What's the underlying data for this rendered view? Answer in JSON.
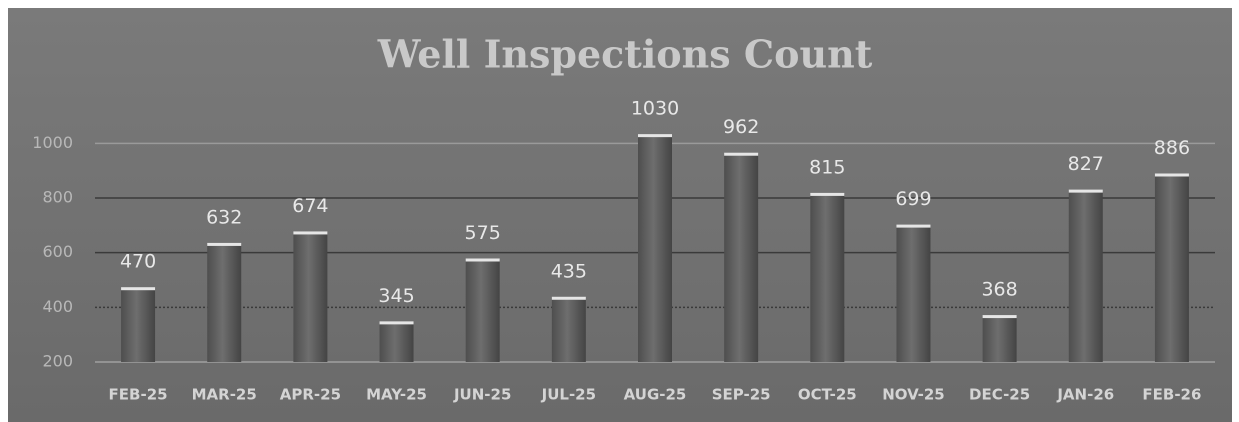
{
  "chart_data": {
    "type": "bar",
    "title": "Well Inspections Count",
    "categories": [
      "FEB-25",
      "MAR-25",
      "APR-25",
      "MAY-25",
      "JUN-25",
      "JUL-25",
      "AUG-25",
      "SEP-25",
      "OCT-25",
      "NOV-25",
      "DEC-25",
      "JAN-26",
      "FEB-26"
    ],
    "values": [
      470,
      632,
      674,
      345,
      575,
      435,
      1030,
      962,
      815,
      699,
      368,
      827,
      886
    ],
    "color": "#5c5c5c",
    "ylim": [
      200,
      1100
    ],
    "yticks": [
      200,
      400,
      600,
      800,
      1000
    ],
    "grid": true
  }
}
